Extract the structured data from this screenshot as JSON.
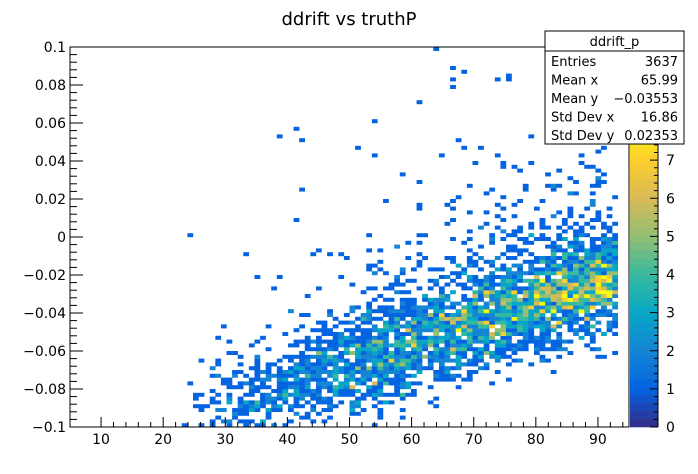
{
  "chart_data": {
    "type": "heatmap",
    "title": "ddrift vs truthP",
    "xlabel": "",
    "ylabel": "",
    "xlim": [
      5,
      95
    ],
    "ylim": [
      -0.1,
      0.1
    ],
    "x_ticks": [
      "10",
      "20",
      "30",
      "40",
      "50",
      "60",
      "70",
      "80",
      "90"
    ],
    "y_ticks": [
      "−0.1",
      "−0.08",
      "−0.06",
      "−0.04",
      "−0.02",
      "0",
      "0.02",
      "0.04",
      "0.06",
      "0.08",
      "0.1"
    ],
    "colorbar": {
      "min": 0,
      "max": 8,
      "ticks": [
        "0",
        "1",
        "2",
        "3",
        "4",
        "5",
        "6",
        "7"
      ],
      "palette": "kBird",
      "colors": [
        "#352a87",
        "#0363e1",
        "#1485d4",
        "#06a7c6",
        "#38b99e",
        "#92bf73",
        "#d9ba56",
        "#fcce2e",
        "#f9fb0e"
      ]
    },
    "grid": false,
    "stats": {
      "name": "ddrift_p",
      "rows": [
        {
          "label": "Entries",
          "value": "3637"
        },
        {
          "label": "Mean x",
          "value": "65.99"
        },
        {
          "label": "Mean y",
          "value": "−0.03553"
        },
        {
          "label": "Std Dev x",
          "value": "16.86"
        },
        {
          "label": "Std Dev y",
          "value": "0.02353"
        }
      ]
    },
    "distribution": {
      "entries": 3637,
      "x_range": [
        22,
        95
      ],
      "trend": "y increases roughly linearly with x: about -0.095 at x=25 to about -0.025 at x=90",
      "core_spread_y": 0.012,
      "outlier_fraction": 0.22
    }
  }
}
